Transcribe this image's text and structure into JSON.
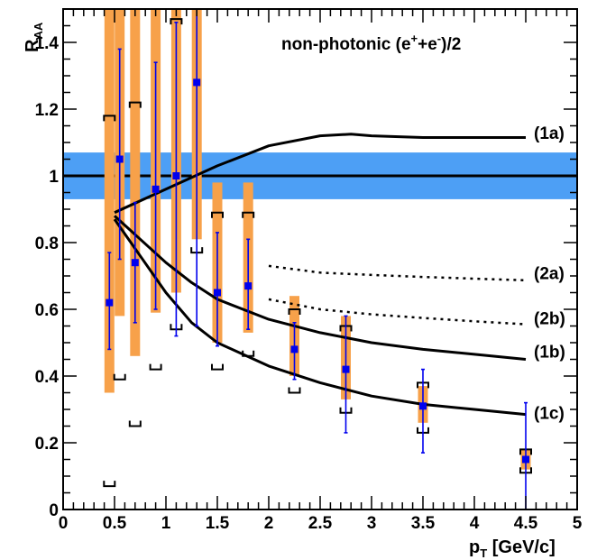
{
  "chart_data": {
    "type": "scatter",
    "title": "non-photonic (e⁺+e⁻)/2",
    "title_parts": {
      "pre": "non-photonic (e",
      "sup1": "+",
      "mid": "+e",
      "sup2": "-",
      "post": ")/2"
    },
    "xlabel": {
      "main": "p",
      "sub": "T",
      "unit": " [GeV/c]"
    },
    "ylabel": {
      "main": "R",
      "sub": "AA"
    },
    "xlim": [
      0,
      5
    ],
    "ylim": [
      0,
      1.5
    ],
    "xticks": [
      {
        "v": 0,
        "label": "0"
      },
      {
        "v": 0.5,
        "label": "0.5"
      },
      {
        "v": 1,
        "label": "1"
      },
      {
        "v": 1.5,
        "label": "1.5"
      },
      {
        "v": 2,
        "label": "2"
      },
      {
        "v": 2.5,
        "label": "2.5"
      },
      {
        "v": 3,
        "label": "3"
      },
      {
        "v": 3.5,
        "label": "3.5"
      },
      {
        "v": 4,
        "label": "4"
      },
      {
        "v": 4.5,
        "label": "4.5"
      },
      {
        "v": 5,
        "label": "5"
      }
    ],
    "yticks": [
      {
        "v": 0,
        "label": "0"
      },
      {
        "v": 0.2,
        "label": "0.2"
      },
      {
        "v": 0.4,
        "label": "0.4"
      },
      {
        "v": 0.6,
        "label": "0.6"
      },
      {
        "v": 0.8,
        "label": "0.8"
      },
      {
        "v": 1,
        "label": "1"
      },
      {
        "v": 1.2,
        "label": "1.2"
      },
      {
        "v": 1.4,
        "label": "1.4"
      }
    ],
    "grid": false,
    "reference_line": {
      "y": 1.0,
      "band": [
        0.93,
        1.07
      ],
      "band_color": "#4d9ff5"
    },
    "colors": {
      "marker": "#0000ee",
      "syst_box": "#f7a14a",
      "curve": "#000000"
    },
    "points": [
      {
        "x": 0.45,
        "y": 0.62,
        "stat": [
          0.48,
          0.77
        ],
        "syst": [
          0.35,
          1.5
        ],
        "bracket": [
          0.07,
          1.18
        ]
      },
      {
        "x": 0.55,
        "y": 1.05,
        "stat": [
          0.75,
          1.38
        ],
        "syst": [
          0.58,
          1.5
        ],
        "bracket": [
          0.39,
          1.5
        ]
      },
      {
        "x": 0.7,
        "y": 0.74,
        "stat": [
          0.56,
          0.92
        ],
        "syst": [
          0.46,
          1.5
        ],
        "bracket": [
          0.25,
          1.22
        ]
      },
      {
        "x": 0.9,
        "y": 0.96,
        "stat": [
          0.6,
          1.34
        ],
        "syst": [
          0.59,
          1.5
        ],
        "bracket": [
          0.42,
          1.5
        ]
      },
      {
        "x": 1.1,
        "y": 1.0,
        "stat": [
          0.52,
          1.46
        ],
        "syst": [
          0.65,
          1.5
        ],
        "bracket": [
          0.54,
          1.47
        ]
      },
      {
        "x": 1.3,
        "y": 1.28,
        "stat": [
          0.55,
          1.5
        ],
        "syst": [
          0.81,
          1.5
        ],
        "bracket": [
          0.77,
          1.5
        ]
      },
      {
        "x": 1.5,
        "y": 0.65,
        "stat": [
          0.49,
          0.83
        ],
        "syst": [
          0.5,
          0.98
        ],
        "bracket": [
          0.42,
          0.89
        ]
      },
      {
        "x": 1.8,
        "y": 0.67,
        "stat": [
          0.54,
          0.81
        ],
        "syst": [
          0.53,
          0.98
        ],
        "bracket": [
          0.46,
          0.89
        ]
      },
      {
        "x": 2.25,
        "y": 0.48,
        "stat": [
          0.39,
          0.56
        ],
        "syst": [
          0.4,
          0.64
        ],
        "bracket": [
          0.35,
          0.6
        ]
      },
      {
        "x": 2.75,
        "y": 0.42,
        "stat": [
          0.23,
          0.58
        ],
        "syst": [
          0.33,
          0.58
        ],
        "bracket": [
          0.29,
          0.55
        ]
      },
      {
        "x": 3.5,
        "y": 0.31,
        "stat": [
          0.17,
          0.42
        ],
        "syst": [
          0.26,
          0.37
        ],
        "bracket": [
          0.23,
          0.38
        ]
      },
      {
        "x": 4.5,
        "y": 0.15,
        "stat": [
          0.0,
          0.32
        ],
        "syst": [
          0.12,
          0.18
        ],
        "bracket": [
          0.11,
          0.18
        ]
      }
    ],
    "curves": [
      {
        "name": "(1a)",
        "style": "solid",
        "label_y": 1.13,
        "x": [
          0.5,
          1.0,
          1.5,
          2.0,
          2.5,
          2.8,
          3.0,
          3.5,
          4.0,
          4.5
        ],
        "y": [
          0.89,
          0.96,
          1.03,
          1.09,
          1.12,
          1.125,
          1.12,
          1.115,
          1.115,
          1.115
        ]
      },
      {
        "name": "(2a)",
        "style": "dotted",
        "label_y": 0.71,
        "x": [
          2.0,
          2.5,
          3.0,
          3.5,
          4.0,
          4.5
        ],
        "y": [
          0.73,
          0.71,
          0.703,
          0.697,
          0.692,
          0.687
        ]
      },
      {
        "name": "(2b)",
        "style": "dotted",
        "label_y": 0.575,
        "x": [
          2.0,
          2.5,
          3.0,
          3.5,
          4.0,
          4.5
        ],
        "y": [
          0.63,
          0.6,
          0.585,
          0.574,
          0.564,
          0.555
        ]
      },
      {
        "name": "(1b)",
        "style": "solid",
        "label_y": 0.475,
        "x": [
          0.5,
          0.75,
          1.0,
          1.25,
          1.5,
          2.0,
          2.5,
          3.0,
          3.5,
          4.0,
          4.5
        ],
        "y": [
          0.88,
          0.81,
          0.74,
          0.68,
          0.63,
          0.57,
          0.53,
          0.5,
          0.48,
          0.465,
          0.45
        ]
      },
      {
        "name": "(1c)",
        "style": "solid",
        "label_y": 0.29,
        "x": [
          0.5,
          0.75,
          1.0,
          1.25,
          1.5,
          2.0,
          2.5,
          3.0,
          3.5,
          4.0,
          4.5
        ],
        "y": [
          0.87,
          0.76,
          0.65,
          0.56,
          0.5,
          0.43,
          0.38,
          0.34,
          0.315,
          0.3,
          0.285
        ]
      }
    ]
  }
}
